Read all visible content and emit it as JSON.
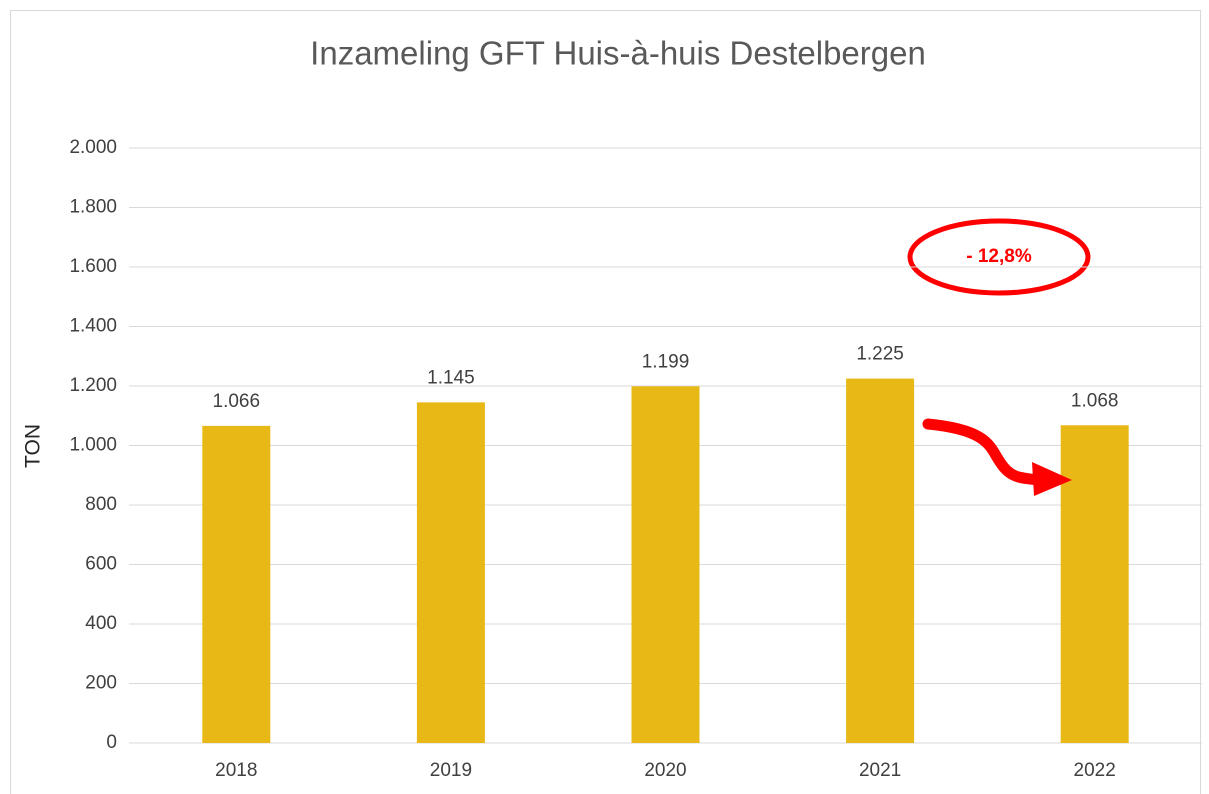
{
  "chart_data": {
    "type": "bar",
    "title": "Inzameling GFT Huis-à-huis Destelbergen",
    "ylabel": "TON",
    "categories": [
      "2018",
      "2019",
      "2020",
      "2021",
      "2022"
    ],
    "values": [
      1066,
      1145,
      1199,
      1225,
      1068
    ],
    "value_labels": [
      "1.066",
      "1.145",
      "1.199",
      "1.225",
      "1.068"
    ],
    "color": "#e8b817",
    "ylim": [
      0,
      2000
    ],
    "yticks": [
      0,
      200,
      400,
      600,
      800,
      {
        "value": 1000,
        "label": "1.000"
      },
      {
        "value": 1200,
        "label": "1.200"
      },
      {
        "value": 1400,
        "label": "1.400"
      },
      {
        "value": 1600,
        "label": "1.600"
      },
      {
        "value": 1800,
        "label": "1.800"
      },
      {
        "value": 2000,
        "label": "2.000"
      }
    ],
    "grid": true,
    "annotation": "- 12,8%"
  }
}
